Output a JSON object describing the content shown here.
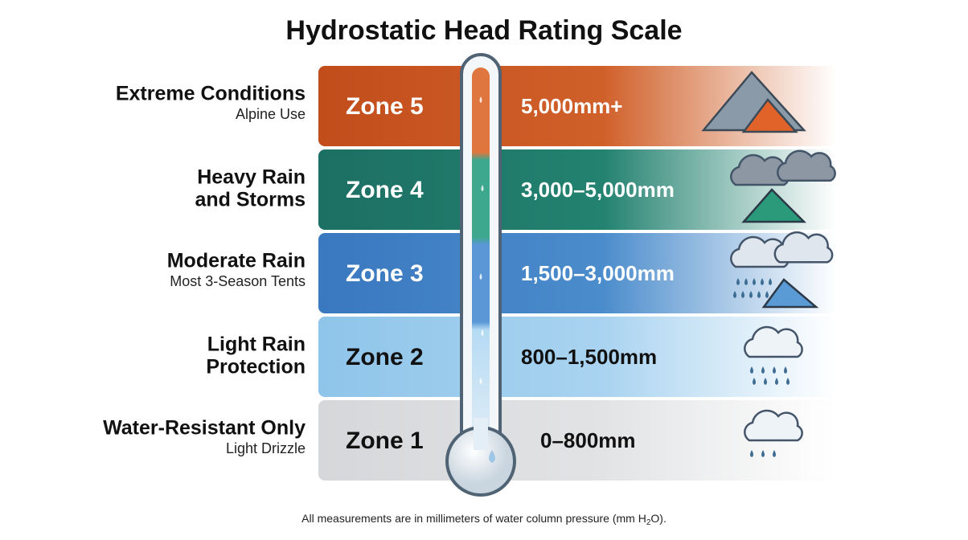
{
  "title": "Hydrostatic Head Rating Scale",
  "zones": [
    {
      "label": [
        "Extreme Conditions"
      ],
      "sublabel": "Alpine Use",
      "zone": "Zone 5",
      "range": "5,000mm+"
    },
    {
      "label": [
        "Heavy Rain",
        "and Storms"
      ],
      "zone": "Zone 4",
      "range": "3,000–5,000mm"
    },
    {
      "label": [
        "Moderate Rain"
      ],
      "sublabel": "Most 3-Season Tents",
      "zone": "Zone 3",
      "range": "1,500–3,000mm"
    },
    {
      "label": [
        "Light Rain",
        "Protection"
      ],
      "zone": "Zone 2",
      "range": "800–1,500mm"
    },
    {
      "label": [
        "Water-Resistant Only"
      ],
      "sublabel": "Light Drizzle",
      "zone": "Zone 1",
      "range": "0–800mm"
    }
  ],
  "footnote": {
    "before": "All measurements are in millimeters of water column pressure (mm H",
    "sub": "2",
    "after": "O)."
  }
}
